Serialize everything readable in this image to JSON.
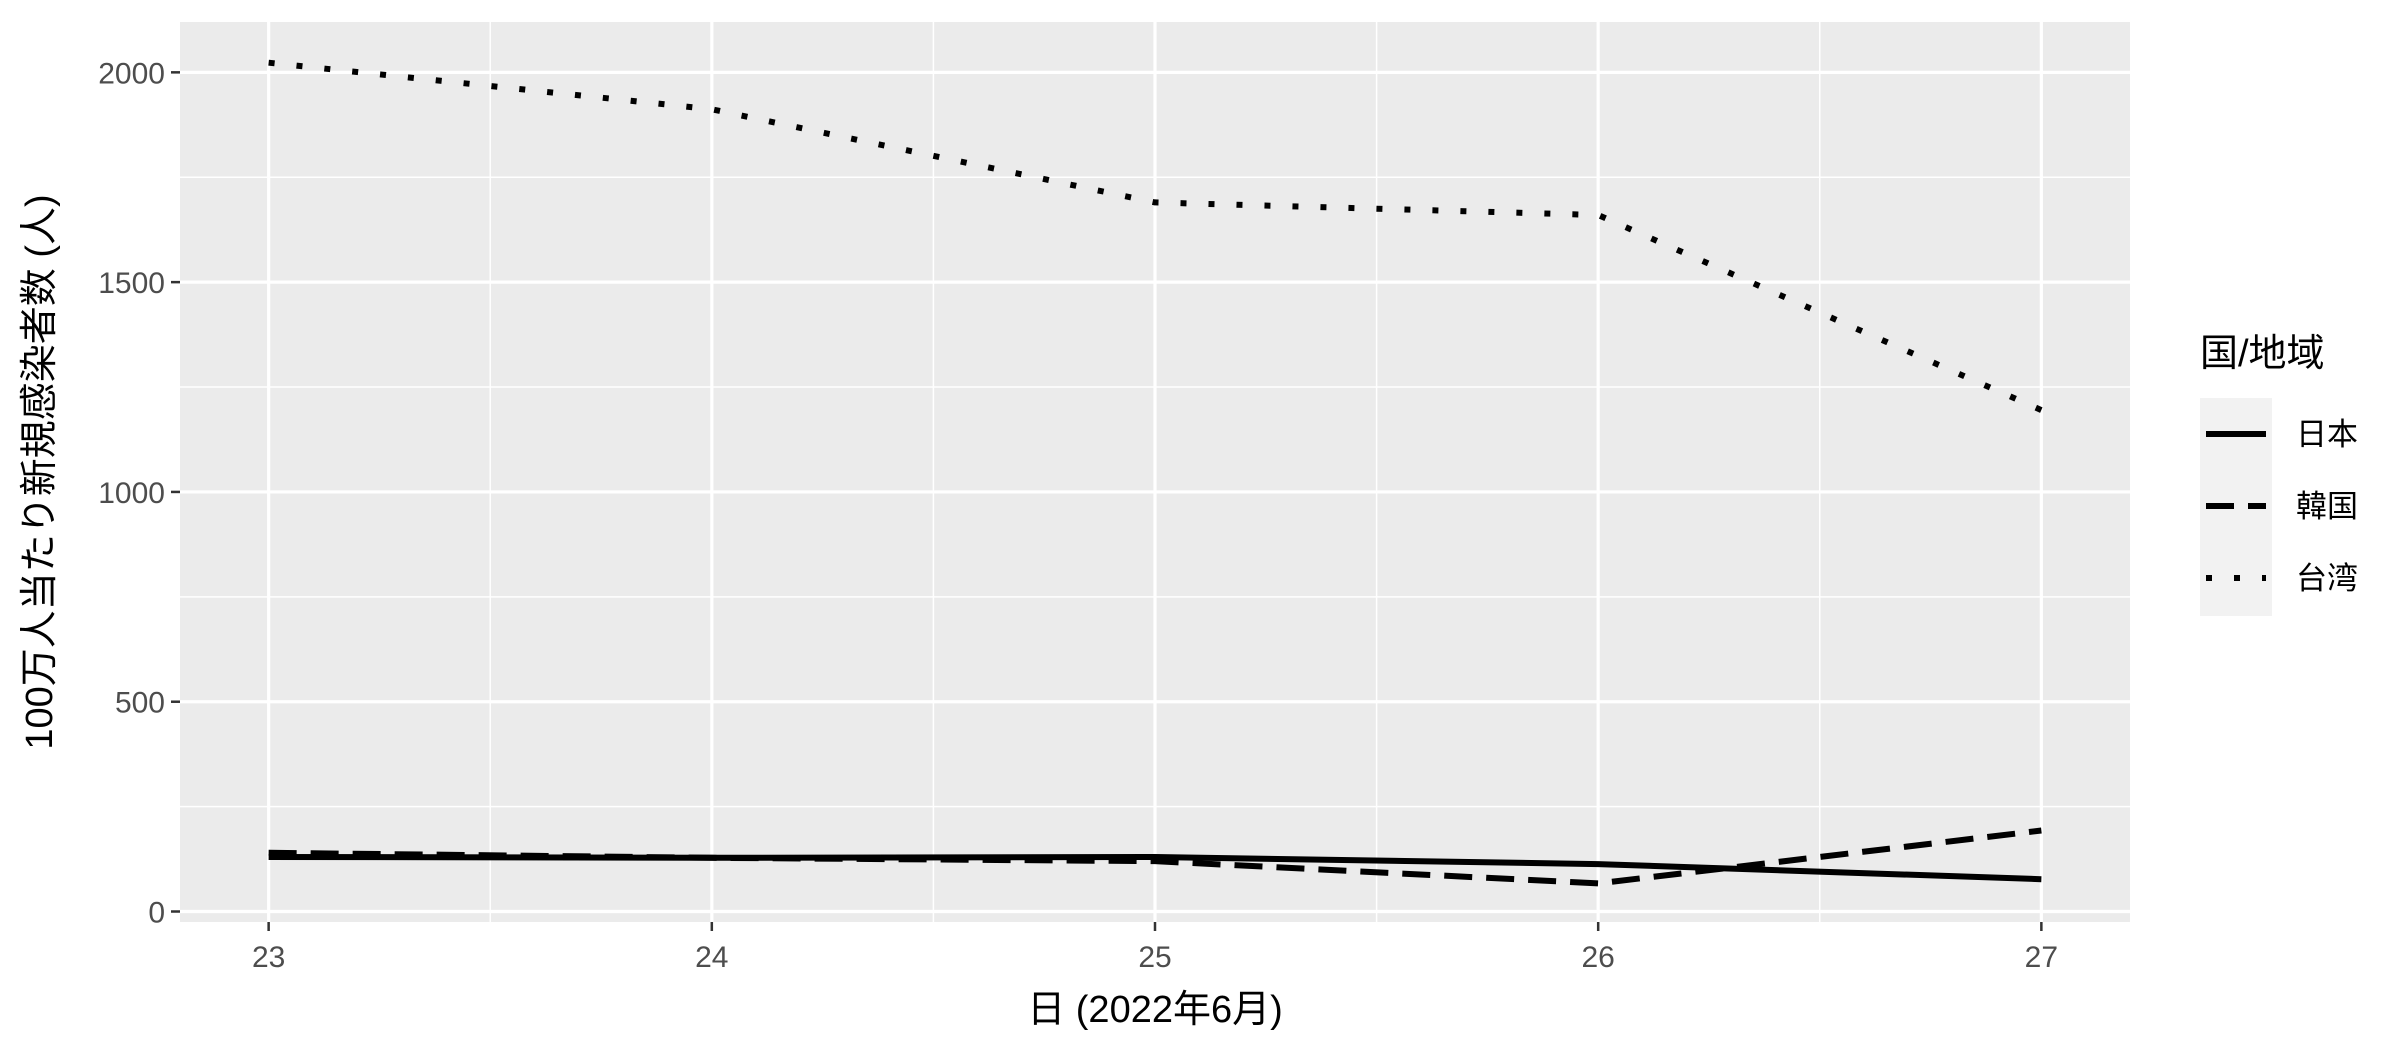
{
  "chart_data": {
    "type": "line",
    "title": "",
    "xlabel": "日 (2022年6月)",
    "ylabel": "100万人当たり新規感染者数 (人)",
    "x": [
      23,
      24,
      25,
      26,
      27
    ],
    "xlim": [
      22.8,
      27.2
    ],
    "ylim": [
      -25,
      2120
    ],
    "x_ticks": [
      "23",
      "24",
      "25",
      "26",
      "27"
    ],
    "y_ticks": [
      "0",
      "500",
      "1000",
      "1500",
      "2000"
    ],
    "grid": true,
    "legend": {
      "title": "国/地域",
      "position": "right"
    },
    "series": [
      {
        "name": "日本",
        "linestyle": "solid",
        "values": [
          130,
          128,
          130,
          113,
          77
        ]
      },
      {
        "name": "韓国",
        "linestyle": "dashed",
        "values": [
          140,
          128,
          120,
          67,
          193
        ]
      },
      {
        "name": "台湾",
        "linestyle": "dotted",
        "values": [
          2023,
          1912,
          1690,
          1660,
          1195
        ]
      }
    ],
    "colors": {
      "panel_background": "#ebebeb",
      "grid": "#ffffff",
      "line": "#000000",
      "legend_key_background": "#f2f2f2"
    }
  }
}
